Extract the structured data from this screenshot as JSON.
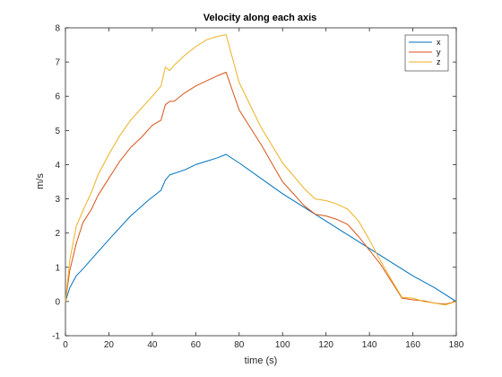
{
  "chart_data": {
    "type": "line",
    "title": "Velocity along each axis",
    "xlabel": "time (s)",
    "ylabel": "m/s",
    "xlim": [
      0,
      180
    ],
    "ylim": [
      -1,
      8
    ],
    "xticks": [
      0,
      20,
      40,
      60,
      80,
      100,
      120,
      140,
      160,
      180
    ],
    "yticks": [
      -1,
      0,
      1,
      2,
      3,
      4,
      5,
      6,
      7,
      8
    ],
    "grid": false,
    "legend_position": "top-right",
    "series": [
      {
        "name": "x",
        "color": "#0072bd",
        "x": [
          0,
          2,
          5,
          8,
          15,
          22,
          30,
          38,
          44,
          46,
          48,
          55,
          60,
          65,
          70,
          74,
          80,
          90,
          100,
          110,
          120,
          130,
          140,
          150,
          160,
          170,
          180
        ],
        "y": [
          0.0,
          0.4,
          0.75,
          0.95,
          1.45,
          1.95,
          2.5,
          2.95,
          3.25,
          3.55,
          3.7,
          3.85,
          4.0,
          4.1,
          4.2,
          4.3,
          4.05,
          3.6,
          3.15,
          2.75,
          2.35,
          1.95,
          1.55,
          1.15,
          0.75,
          0.4,
          0.0
        ]
      },
      {
        "name": "y",
        "color": "#d95319",
        "x": [
          0,
          2,
          5,
          8,
          12,
          15,
          20,
          25,
          30,
          35,
          40,
          44,
          46,
          48,
          50,
          55,
          60,
          65,
          70,
          74,
          80,
          90,
          100,
          110,
          115,
          120,
          125,
          130,
          135,
          140,
          145,
          150,
          155,
          160,
          165,
          170,
          175,
          180
        ],
        "y": [
          0.0,
          0.9,
          1.7,
          2.3,
          2.7,
          3.1,
          3.6,
          4.1,
          4.5,
          4.8,
          5.15,
          5.3,
          5.75,
          5.85,
          5.85,
          6.1,
          6.3,
          6.45,
          6.6,
          6.7,
          5.6,
          4.6,
          3.5,
          2.8,
          2.55,
          2.5,
          2.4,
          2.25,
          1.9,
          1.5,
          1.1,
          0.6,
          0.1,
          0.05,
          0.02,
          -0.05,
          -0.08,
          0.0
        ]
      },
      {
        "name": "z",
        "color": "#edb120",
        "x": [
          0,
          2,
          5,
          8,
          12,
          15,
          20,
          25,
          30,
          35,
          40,
          44,
          46,
          48,
          50,
          55,
          60,
          65,
          70,
          74,
          80,
          90,
          100,
          110,
          115,
          120,
          125,
          130,
          135,
          140,
          145,
          150,
          155,
          160,
          165,
          170,
          175,
          180
        ],
        "y": [
          0.0,
          1.2,
          2.2,
          2.65,
          3.2,
          3.7,
          4.3,
          4.85,
          5.3,
          5.65,
          6.0,
          6.3,
          6.85,
          6.75,
          6.9,
          7.2,
          7.45,
          7.65,
          7.75,
          7.8,
          6.4,
          5.1,
          4.05,
          3.3,
          3.0,
          2.95,
          2.85,
          2.7,
          2.35,
          1.8,
          1.2,
          0.65,
          0.12,
          0.1,
          0.0,
          -0.05,
          -0.1,
          0.0
        ]
      }
    ]
  }
}
